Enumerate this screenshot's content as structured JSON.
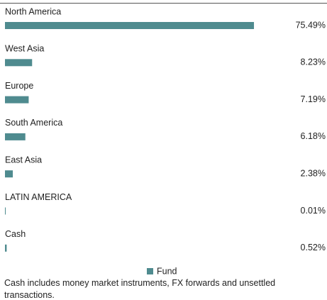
{
  "chart_data": {
    "type": "hbar",
    "categories": [
      "North America",
      "West Asia",
      "Europe",
      "South America",
      "East Asia",
      "LATIN AMERICA",
      "Cash"
    ],
    "series": [
      {
        "name": "Fund",
        "color": "#4f8b8f",
        "values": [
          75.49,
          8.23,
          7.19,
          6.18,
          2.38,
          0.01,
          0.52
        ],
        "value_labels": [
          "75.49%",
          "8.23%",
          "7.19%",
          "6.18%",
          "2.38%",
          "0.01%",
          "0.52%"
        ]
      }
    ],
    "legend": "bottom",
    "note": "Cash includes money market instruments, FX forwards and unsettled transactions."
  }
}
